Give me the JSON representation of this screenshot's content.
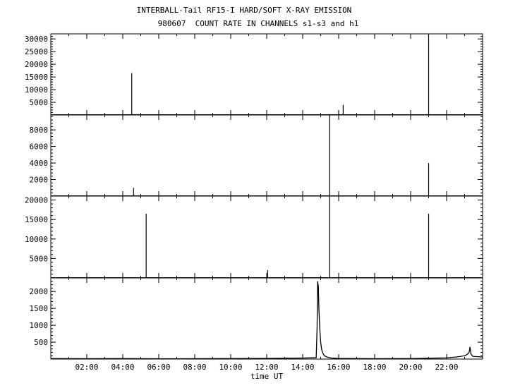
{
  "title_line_1": "INTERBALL-Tail RF15-I HARD/SOFT X-RAY EMISSION",
  "title_line_2": "980607  COUNT RATE IN CHANNELS s1-s3 and h1",
  "chart_data": {
    "type": "line",
    "xlabel": "time UT",
    "xlim_hours": [
      0,
      24
    ],
    "x_tick_labels": [
      "02:00",
      "04:00",
      "06:00",
      "08:00",
      "10:00",
      "12:00",
      "14:00",
      "16:00",
      "18:00",
      "20:00",
      "22:00"
    ],
    "x_tick_hours": [
      2,
      4,
      6,
      8,
      10,
      12,
      14,
      16,
      18,
      20,
      22
    ],
    "grid": false,
    "panels": [
      {
        "name": "s1",
        "ylim": [
          0,
          32000
        ],
        "y_tick_values": [
          5000,
          10000,
          15000,
          20000,
          25000,
          30000
        ],
        "y_tick_labels": [
          "5000",
          "10000",
          "15000",
          "20000",
          "25000",
          "30000"
        ],
        "spikes": [
          {
            "hour": 4.5,
            "value": 16500
          },
          {
            "hour": 16.25,
            "value": 4000
          },
          {
            "hour": 16.0,
            "value": 1500
          },
          {
            "hour": 21.0,
            "value": 32000
          }
        ],
        "baseline": 0
      },
      {
        "name": "s2",
        "ylim": [
          0,
          9800
        ],
        "y_tick_values": [
          2000,
          4000,
          6000,
          8000
        ],
        "y_tick_labels": [
          "2000",
          "4000",
          "6000",
          "8000"
        ],
        "spikes": [
          {
            "hour": 4.6,
            "value": 1000
          },
          {
            "hour": 15.0,
            "value": 150
          },
          {
            "hour": 15.5,
            "value": 9800
          },
          {
            "hour": 21.0,
            "value": 4000
          }
        ],
        "baseline": 0
      },
      {
        "name": "s3",
        "ylim": [
          0,
          21000
        ],
        "y_tick_values": [
          5000,
          10000,
          15000,
          20000
        ],
        "y_tick_labels": [
          "5000",
          "10000",
          "15000",
          "20000"
        ],
        "spikes": [
          {
            "hour": 5.3,
            "value": 16500
          },
          {
            "hour": 12.05,
            "value": 2000
          },
          {
            "hour": 15.0,
            "value": 300
          },
          {
            "hour": 15.5,
            "value": 21000
          },
          {
            "hour": 21.0,
            "value": 16500
          }
        ],
        "baseline": 0
      },
      {
        "name": "h1",
        "ylim": [
          0,
          2400
        ],
        "y_tick_values": [
          500,
          1000,
          1500,
          2000
        ],
        "y_tick_labels": [
          "500",
          "1000",
          "1500",
          "2000"
        ],
        "curve": [
          [
            0,
            15
          ],
          [
            2,
            12
          ],
          [
            4,
            14
          ],
          [
            6,
            10
          ],
          [
            8,
            12
          ],
          [
            10,
            14
          ],
          [
            12,
            20
          ],
          [
            14,
            30
          ],
          [
            14.75,
            40
          ],
          [
            14.8,
            900
          ],
          [
            14.83,
            2300
          ],
          [
            14.87,
            2150
          ],
          [
            14.9,
            1500
          ],
          [
            14.95,
            900
          ],
          [
            15.0,
            500
          ],
          [
            15.05,
            300
          ],
          [
            15.1,
            200
          ],
          [
            15.2,
            100
          ],
          [
            15.4,
            50
          ],
          [
            15.6,
            30
          ],
          [
            16,
            20
          ],
          [
            18,
            12
          ],
          [
            20,
            15
          ],
          [
            22,
            35
          ],
          [
            22.5,
            60
          ],
          [
            22.8,
            80
          ],
          [
            23.0,
            100
          ],
          [
            23.15,
            140
          ],
          [
            23.25,
            200
          ],
          [
            23.3,
            360
          ],
          [
            23.35,
            160
          ],
          [
            23.45,
            80
          ],
          [
            24,
            60
          ]
        ]
      }
    ]
  }
}
